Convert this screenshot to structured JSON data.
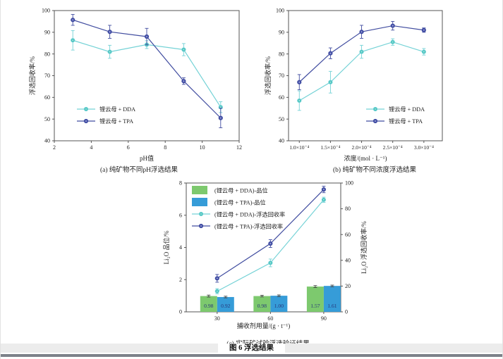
{
  "figure": {
    "caption": "图 6  浮选结果"
  },
  "colors": {
    "dda_line": "#74d2d6",
    "dda_marker": "#49c4be",
    "tpa_line": "#414da0",
    "tpa_marker": "#434fa8",
    "bar_green": "#7dc96e",
    "bar_blue": "#369cd8",
    "bar_label": "#27357a",
    "axis": "#555555",
    "text": "#222222"
  },
  "chart_data": [
    {
      "id": "a",
      "type": "line",
      "caption": "(a) 纯矿物不同pH浮选结果",
      "xlabel": "pH值",
      "ylabel": "浮选回收率/%",
      "xlim": [
        2,
        12
      ],
      "xticks": [
        2,
        4,
        6,
        8,
        10,
        12
      ],
      "ylim": [
        40,
        100
      ],
      "yticks": [
        40,
        50,
        60,
        70,
        80,
        90,
        100
      ],
      "x": [
        3,
        5,
        7,
        9,
        11
      ],
      "grid": false,
      "legend_position": "bottom-left",
      "series": [
        {
          "name": "锂云母 + DDA",
          "colorKey": "dda",
          "values": [
            86.3,
            81.0,
            84.3,
            82.0,
            55.5
          ],
          "errors": [
            4.5,
            3.0,
            1.8,
            2.8,
            2.5
          ]
        },
        {
          "name": "锂云母 + TPA",
          "colorKey": "tpa",
          "values": [
            95.7,
            90.2,
            88.0,
            67.5,
            50.5
          ],
          "errors": [
            2.5,
            3.0,
            3.8,
            1.5,
            4.5
          ]
        }
      ]
    },
    {
      "id": "b",
      "type": "line",
      "caption": "(b) 纯矿物不同浓度浮选结果",
      "xlabel": "浓度/(mol · L⁻¹)",
      "ylabel": "浮选回收率/%",
      "categories": [
        "1.0×10⁻⁴",
        "1.5×10⁻⁴",
        "2.0×10⁻⁴",
        "2.5×10⁻⁴",
        "3.0×10⁻⁴"
      ],
      "ylim": [
        40,
        100
      ],
      "yticks": [
        40,
        50,
        60,
        70,
        80,
        90,
        100
      ],
      "grid": false,
      "legend_position": "bottom-right",
      "series": [
        {
          "name": "锂云母 + DDA",
          "colorKey": "dda",
          "values": [
            58.5,
            67.0,
            81.0,
            85.5,
            81.0
          ],
          "errors": [
            4.5,
            5.0,
            3.0,
            1.5,
            1.5
          ]
        },
        {
          "name": "锂云母 + TPA",
          "colorKey": "tpa",
          "values": [
            67.0,
            80.3,
            90.2,
            93.0,
            91.0
          ],
          "errors": [
            3.5,
            2.5,
            3.0,
            2.0,
            1.0
          ]
        }
      ]
    },
    {
      "id": "c",
      "type": "combo",
      "caption": "(c) 实际矿试验浮选验证结果",
      "xlabel": "捕收剂用量/(g · t⁻¹)",
      "ylabel_left": "Li₂O 品位/%",
      "ylabel_right": "Li₂O 浮选回收率/%",
      "categories": [
        "30",
        "60",
        "90"
      ],
      "ylim_left": [
        0,
        8
      ],
      "yticks_left": [
        0,
        2,
        4,
        6,
        8
      ],
      "ylim_right": [
        0,
        100
      ],
      "yticks_right": [
        0,
        20,
        40,
        60,
        80,
        100
      ],
      "grid": false,
      "legend_position": "top-left",
      "bars": [
        {
          "name": "(锂云母 + DDA)-品位",
          "colorKey": "bar_green",
          "values": [
            0.98,
            0.98,
            1.57
          ],
          "labels": [
            "0.98",
            "0.98",
            "1.57"
          ],
          "errors": [
            0.06,
            0.05,
            0.06
          ]
        },
        {
          "name": "(锂云母 + TPA)-品位",
          "colorKey": "bar_blue",
          "values": [
            0.92,
            1.0,
            1.61
          ],
          "labels": [
            "0.92",
            "1.00",
            "1.61"
          ],
          "errors": [
            0.05,
            0.05,
            0.05
          ]
        }
      ],
      "lines": [
        {
          "name": "(锂云母 + DDA)-浮选回收率",
          "colorKey": "dda",
          "values": [
            16,
            38,
            87
          ],
          "errors": [
            2.0,
            3.0,
            2.0
          ]
        },
        {
          "name": "(锂云母 + TPA)-浮选回收率",
          "colorKey": "tpa",
          "values": [
            26,
            53,
            95
          ],
          "errors": [
            3.0,
            3.0,
            2.5
          ]
        }
      ]
    }
  ]
}
